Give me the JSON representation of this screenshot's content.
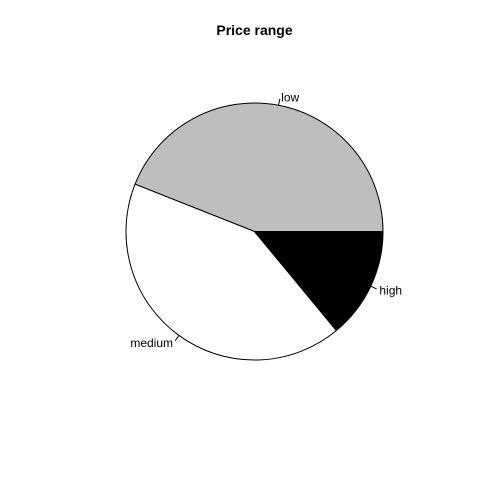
{
  "chart_data": {
    "type": "pie",
    "title": "Price range",
    "start_angle_deg": 0,
    "direction": "counterclockwise",
    "slices": [
      {
        "label": "low",
        "value": 0.44,
        "color": "#BEBEBE"
      },
      {
        "label": "medium",
        "value": 0.42,
        "color": "#FFFFFF"
      },
      {
        "label": "high",
        "value": 0.14,
        "color": "#000000"
      }
    ],
    "legend": "none",
    "grid": false
  }
}
